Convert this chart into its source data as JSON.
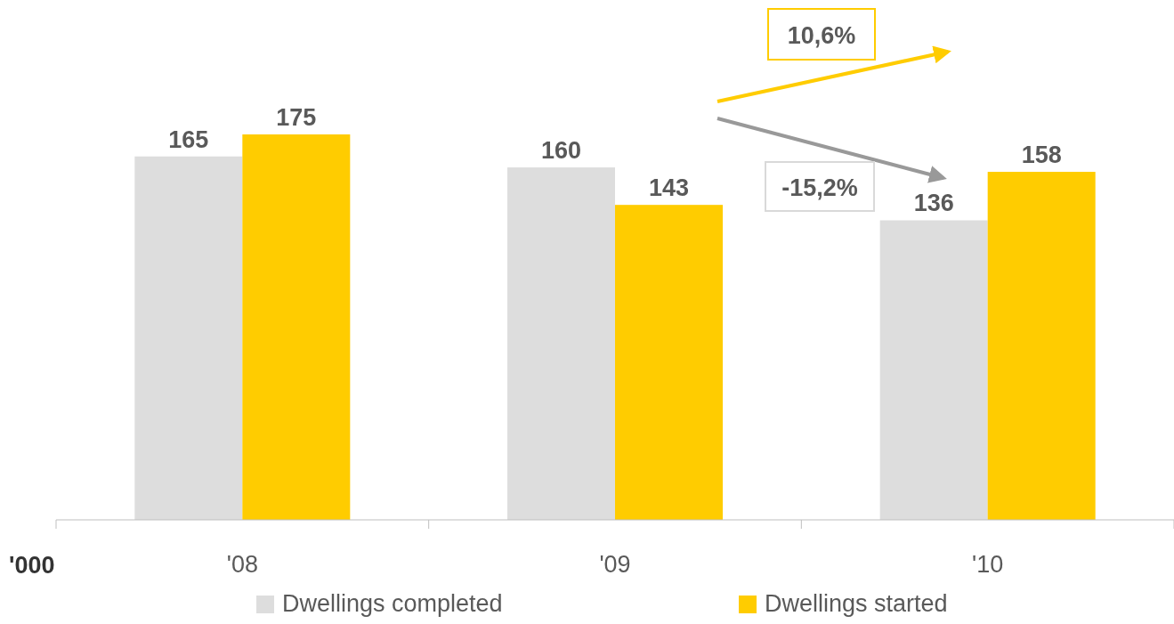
{
  "chart_data": {
    "type": "bar",
    "categories": [
      "'08",
      "'09",
      "'10"
    ],
    "series": [
      {
        "name": "Dwellings completed",
        "color": "#dddddd",
        "values": [
          165,
          160,
          136
        ]
      },
      {
        "name": "Dwellings started",
        "color": "#ffcc00",
        "values": [
          175,
          143,
          158
        ]
      }
    ],
    "data_labels": true,
    "ylabel": "'000",
    "legend": "bottom",
    "annotations": [
      "10,6%",
      "-15,2%"
    ]
  }
}
